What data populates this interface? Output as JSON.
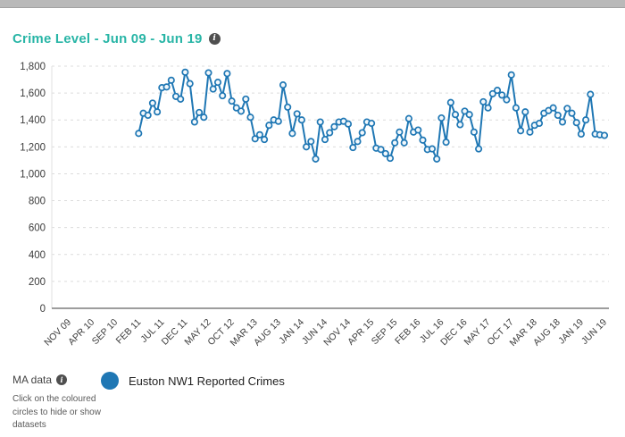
{
  "header": {
    "title": "Crime Level - Jun 09 - Jun 19"
  },
  "icons": {
    "info_glyph": "i"
  },
  "chart_data": {
    "type": "line",
    "title": "Crime Level - Jun 09 - Jun 19",
    "x_axis": {
      "range_months": [
        "Jun 2009",
        "Jun 2019"
      ],
      "tick_labels": [
        "NOV 09",
        "APR 10",
        "SEP 10",
        "FEB 11",
        "JUL 11",
        "DEC 11",
        "MAY 12",
        "OCT 12",
        "MAR 13",
        "AUG 13",
        "JAN 14",
        "JUN 14",
        "NOV 14",
        "APR 15",
        "SEP 15",
        "FEB 16",
        "JUL 16",
        "DEC 16",
        "MAY 17",
        "OCT 17",
        "MAR 18",
        "AUG 18",
        "JAN 19",
        "JUN 19"
      ],
      "tick_interval_months": 5,
      "first_tick_month_offset": 5,
      "total_months": 121
    },
    "y_axis": {
      "ylim": [
        0,
        1800
      ],
      "tick_step": 200,
      "tick_values": [
        0,
        200,
        400,
        600,
        800,
        1000,
        1200,
        1400,
        1600,
        1800
      ],
      "tick_labels": [
        "0",
        "200",
        "400",
        "600",
        "800",
        "1,000",
        "1,200",
        "1,400",
        "1,600",
        "1,800"
      ]
    },
    "grid": {
      "horizontal": true,
      "style": "dashed"
    },
    "legend_position": "bottom",
    "series": [
      {
        "name": "Euston NW1 Reported Crimes",
        "color": "#1f77b4",
        "marker": "open-circle",
        "first_point_month": "Feb 2011",
        "first_point_month_offset": 20,
        "last_point_month": "Jun 2019",
        "values": [
          1300,
          1450,
          1435,
          1525,
          1460,
          1640,
          1645,
          1695,
          1575,
          1555,
          1755,
          1670,
          1385,
          1455,
          1420,
          1750,
          1630,
          1680,
          1580,
          1745,
          1540,
          1490,
          1465,
          1555,
          1420,
          1260,
          1290,
          1255,
          1360,
          1400,
          1390,
          1660,
          1495,
          1300,
          1445,
          1400,
          1200,
          1240,
          1110,
          1385,
          1255,
          1305,
          1350,
          1385,
          1390,
          1370,
          1195,
          1240,
          1305,
          1385,
          1375,
          1190,
          1180,
          1150,
          1115,
          1230,
          1310,
          1230,
          1410,
          1310,
          1325,
          1250,
          1180,
          1185,
          1110,
          1415,
          1235,
          1530,
          1440,
          1365,
          1465,
          1440,
          1310,
          1185,
          1535,
          1490,
          1595,
          1620,
          1585,
          1550,
          1735,
          1490,
          1320,
          1460,
          1310,
          1360,
          1375,
          1450,
          1470,
          1490,
          1435,
          1385,
          1485,
          1450,
          1380,
          1295,
          1400,
          1590,
          1295,
          1290,
          1285
        ]
      }
    ]
  },
  "footer": {
    "ma_data_label": "MA data",
    "hint_text": "Click on the coloured circles to hide or show datasets",
    "legend": [
      {
        "label": "Euston NW1 Reported Crimes",
        "color": "#1f77b4"
      }
    ]
  },
  "colors": {
    "accent_teal": "#28b5a6",
    "series_blue": "#1f77b4",
    "grid_gray": "#dcdcdc",
    "axis_gray": "#7d7d7d",
    "tick_text": "#3c3c3c"
  }
}
